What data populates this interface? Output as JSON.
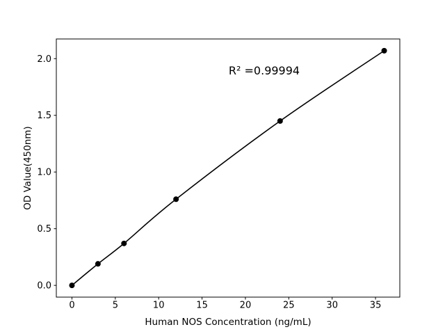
{
  "figure": {
    "background": "#ffffff",
    "foreground": "#000000"
  },
  "chart_data": {
    "type": "line",
    "title": "",
    "xlabel": "Human NOS Concentration (ng/mL)",
    "ylabel": "OD Value(450nm)",
    "annotation": "R² =0.99994",
    "x": [
      0,
      3,
      6,
      12,
      24,
      36
    ],
    "y": [
      0.0,
      0.19,
      0.37,
      0.76,
      1.45,
      2.07
    ],
    "xticks": [
      0,
      5,
      10,
      15,
      20,
      25,
      30,
      35
    ],
    "xtick_labels": [
      "0",
      "5",
      "10",
      "15",
      "20",
      "25",
      "30",
      "35"
    ],
    "yticks": [
      0.0,
      0.5,
      1.0,
      1.5,
      2.0
    ],
    "ytick_labels": [
      "0.0",
      "0.5",
      "1.0",
      "1.5",
      "2.0"
    ],
    "xlim": [
      -1.8,
      37.8
    ],
    "ylim": [
      -0.1035,
      2.1735
    ],
    "grid": false,
    "legend": null,
    "line_color": "#000000",
    "marker_color": "#000000",
    "marker": "circle",
    "marker_radius": 4
  }
}
